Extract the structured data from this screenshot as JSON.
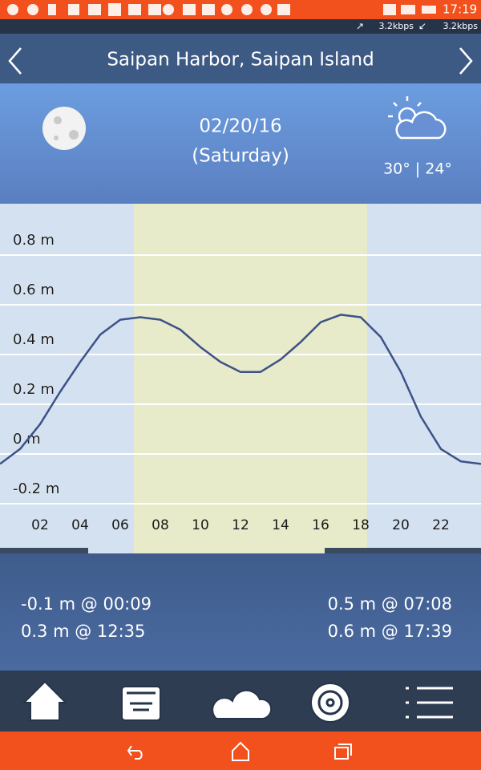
{
  "status_bar": {
    "time": "17:19",
    "upload": "3.2kbps",
    "download": "3.2kbps"
  },
  "header": {
    "title": "Saipan Harbor, Saipan Island"
  },
  "day": {
    "date": "02/20/16",
    "weekday": "(Saturday)",
    "temperature": "30° | 24°"
  },
  "chart_data": {
    "type": "line",
    "x": [
      0,
      1,
      2,
      3,
      4,
      5,
      6,
      7,
      8,
      9,
      10,
      11,
      12,
      13,
      14,
      15,
      16,
      17,
      18,
      19,
      20,
      21,
      22,
      23,
      24
    ],
    "values": [
      -0.04,
      0.02,
      0.12,
      0.25,
      0.37,
      0.48,
      0.54,
      0.55,
      0.54,
      0.5,
      0.43,
      0.37,
      0.33,
      0.33,
      0.38,
      0.45,
      0.53,
      0.56,
      0.55,
      0.47,
      0.33,
      0.15,
      0.02,
      -0.03,
      -0.04
    ],
    "color": "#3d5288",
    "xlim": [
      0,
      24
    ],
    "ylim": [
      -0.4,
      1.0
    ],
    "xticks": [
      {
        "value": 2,
        "label": "02"
      },
      {
        "value": 4,
        "label": "04"
      },
      {
        "value": 6,
        "label": "06"
      },
      {
        "value": 8,
        "label": "08"
      },
      {
        "value": 10,
        "label": "10"
      },
      {
        "value": 12,
        "label": "12"
      },
      {
        "value": 14,
        "label": "14"
      },
      {
        "value": 16,
        "label": "16"
      },
      {
        "value": 18,
        "label": "18"
      },
      {
        "value": 20,
        "label": "20"
      },
      {
        "value": 22,
        "label": "22"
      }
    ],
    "yticks": [
      {
        "value": -0.2,
        "label": "-0.2 m"
      },
      {
        "value": 0,
        "label": "0 m"
      },
      {
        "value": 0.2,
        "label": "0.2 m"
      },
      {
        "value": 0.4,
        "label": "0.4 m"
      },
      {
        "value": 0.6,
        "label": "0.6 m"
      },
      {
        "value": 0.8,
        "label": "0.8 m"
      }
    ],
    "grid": true
  },
  "tides": {
    "left": [
      "-0.1 m @ 00:09",
      "0.3 m @ 12:35"
    ],
    "right": [
      "0.5 m @ 07:08",
      "0.6 m @ 17:39"
    ]
  }
}
